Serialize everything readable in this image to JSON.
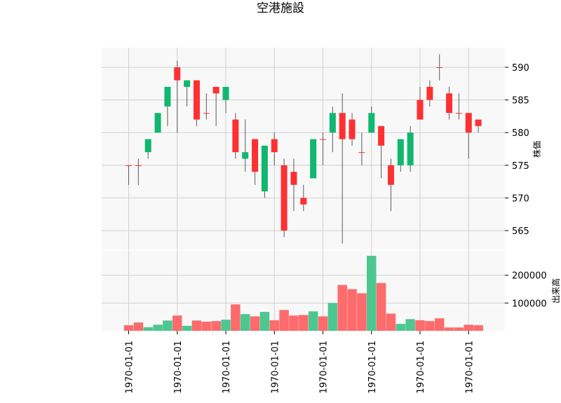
{
  "chart_data": {
    "type": "candlestick",
    "title": "空港施設",
    "ylabel_price": "株価",
    "ylabel_volume": "出来高",
    "x_tick_labels": [
      "1970-01-01",
      "1970-01-01",
      "1970-01-01",
      "1970-01-01",
      "1970-01-01",
      "1970-01-01",
      "1970-01-01",
      "1970-01-01"
    ],
    "price_ticks": [
      565,
      570,
      575,
      580,
      585,
      590
    ],
    "price_tick_labels": [
      "565",
      "570",
      "575",
      "580",
      "585",
      "590"
    ],
    "volume_ticks": [
      100000,
      200000
    ],
    "volume_tick_labels": [
      "100000",
      "200000"
    ],
    "price_ylim": [
      562,
      593
    ],
    "volume_ylim": [
      0,
      290000
    ],
    "grid": true,
    "colors": {
      "up": "#10b76f",
      "down": "#fe3032",
      "up_volume": "#4dc790",
      "down_volume": "#fd6b6c",
      "wick": "#5a5a5a",
      "panel_bg": "#f8f8f8",
      "grid": "#d0d0d0"
    },
    "candles": [
      {
        "open": 575,
        "high": 575,
        "low": 572,
        "close": 575,
        "volume": 20000
      },
      {
        "open": 575,
        "high": 576,
        "low": 572,
        "close": 575,
        "volume": 30000
      },
      {
        "open": 577,
        "high": 579,
        "low": 576,
        "close": 579,
        "volume": 13000
      },
      {
        "open": 580,
        "high": 583,
        "low": 580,
        "close": 583,
        "volume": 22000
      },
      {
        "open": 584,
        "high": 587,
        "low": 581,
        "close": 587,
        "volume": 37000
      },
      {
        "open": 590,
        "high": 591,
        "low": 580,
        "close": 588,
        "volume": 55000
      },
      {
        "open": 587,
        "high": 588,
        "low": 584,
        "close": 588,
        "volume": 18000
      },
      {
        "open": 588,
        "high": 588,
        "low": 581,
        "close": 582,
        "volume": 37000
      },
      {
        "open": 583,
        "high": 586,
        "low": 582,
        "close": 583,
        "volume": 33000
      },
      {
        "open": 587,
        "high": 587,
        "low": 581,
        "close": 586,
        "volume": 35000
      },
      {
        "open": 585,
        "high": 587,
        "low": 583,
        "close": 587,
        "volume": 40000
      },
      {
        "open": 582,
        "high": 583,
        "low": 576,
        "close": 577,
        "volume": 95000
      },
      {
        "open": 576,
        "high": 582,
        "low": 574,
        "close": 577,
        "volume": 60000
      },
      {
        "open": 579,
        "high": 579,
        "low": 572,
        "close": 574,
        "volume": 52000
      },
      {
        "open": 571,
        "high": 578,
        "low": 570,
        "close": 578,
        "volume": 68000
      },
      {
        "open": 579,
        "high": 580,
        "low": 575,
        "close": 577,
        "volume": 38000
      },
      {
        "open": 575,
        "high": 576,
        "low": 564,
        "close": 565,
        "volume": 75000
      },
      {
        "open": 574,
        "high": 576,
        "low": 568,
        "close": 572,
        "volume": 55000
      },
      {
        "open": 570,
        "high": 572,
        "low": 568,
        "close": 569,
        "volume": 57000
      },
      {
        "open": 573,
        "high": 579,
        "low": 573,
        "close": 579,
        "volume": 70000
      },
      {
        "open": 579,
        "high": 580,
        "low": 575,
        "close": 579,
        "volume": 52000
      },
      {
        "open": 580,
        "high": 584,
        "low": 577,
        "close": 583,
        "volume": 100000
      },
      {
        "open": 583,
        "high": 586,
        "low": 563,
        "close": 579,
        "volume": 165000
      },
      {
        "open": 582,
        "high": 583,
        "low": 578,
        "close": 579,
        "volume": 150000
      },
      {
        "open": 577,
        "high": 580,
        "low": 575,
        "close": 577,
        "volume": 135000
      },
      {
        "open": 580,
        "high": 584,
        "low": 580,
        "close": 583,
        "volume": 270000
      },
      {
        "open": 581,
        "high": 581,
        "low": 573,
        "close": 578,
        "volume": 172000
      },
      {
        "open": 575,
        "high": 576,
        "low": 568,
        "close": 572,
        "volume": 62000
      },
      {
        "open": 575,
        "high": 579,
        "low": 574,
        "close": 579,
        "volume": 25000
      },
      {
        "open": 575,
        "high": 581,
        "low": 574,
        "close": 580,
        "volume": 42000
      },
      {
        "open": 585,
        "high": 587,
        "low": 582,
        "close": 582,
        "volume": 38000
      },
      {
        "open": 587,
        "high": 588,
        "low": 584,
        "close": 585,
        "volume": 35000
      },
      {
        "open": 590,
        "high": 592,
        "low": 588,
        "close": 590,
        "volume": 45000
      },
      {
        "open": 586,
        "high": 587,
        "low": 582,
        "close": 583,
        "volume": 12000
      },
      {
        "open": 583,
        "high": 586,
        "low": 582,
        "close": 583,
        "volume": 12000
      },
      {
        "open": 583,
        "high": 583,
        "low": 576,
        "close": 580,
        "volume": 22000
      },
      {
        "open": 582,
        "high": 582,
        "low": 580,
        "close": 581,
        "volume": 20000
      }
    ]
  }
}
